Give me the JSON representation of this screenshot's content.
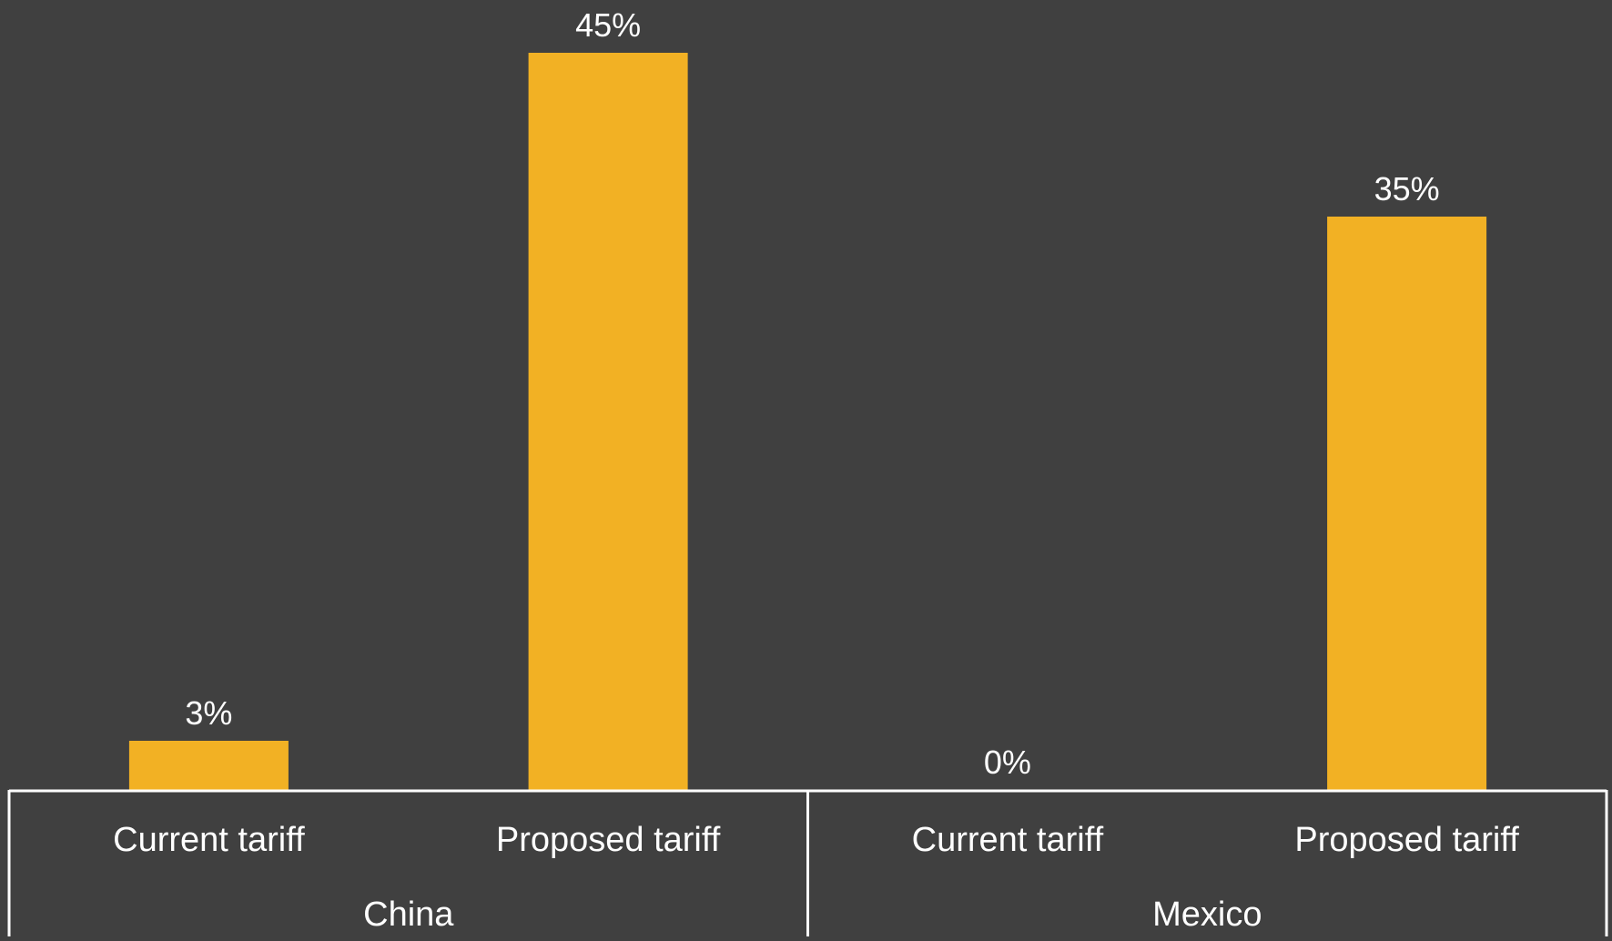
{
  "chart_data": {
    "type": "bar",
    "groups": [
      {
        "name": "China",
        "categories": [
          "Current tariff",
          "Proposed tariff"
        ],
        "values": [
          3,
          45
        ],
        "labels": [
          "3%",
          "45%"
        ]
      },
      {
        "name": "Mexico",
        "categories": [
          "Current tariff",
          "Proposed tariff"
        ],
        "values": [
          0,
          35
        ],
        "labels": [
          "0%",
          "35%"
        ]
      }
    ],
    "ylim": [
      0,
      45
    ],
    "grid": false,
    "legend": "none",
    "colors": {
      "background": "#404040",
      "bar": "#F2B124",
      "axis": "#ffffff",
      "text": "#ffffff"
    }
  }
}
